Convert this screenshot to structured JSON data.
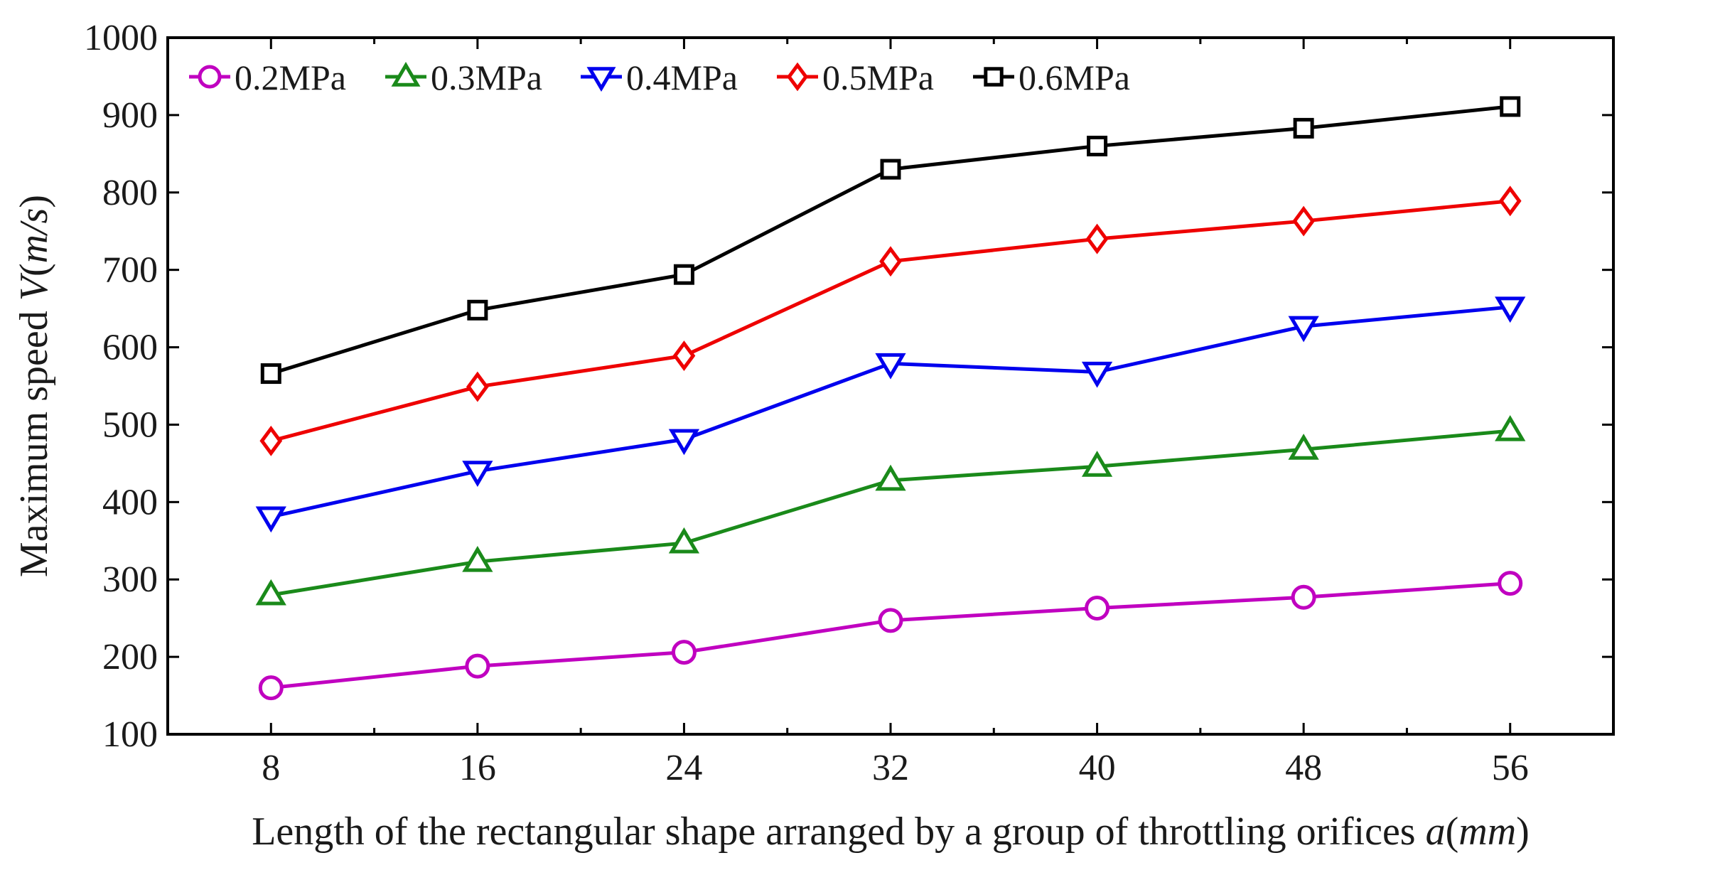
{
  "chart_data": {
    "type": "line",
    "title": "",
    "xlabel_parts": [
      {
        "text": "Length of the rectangular shape arranged by a group of throttling orifices ",
        "italic": false
      },
      {
        "text": "a",
        "italic": true
      },
      {
        "text": "(",
        "italic": false
      },
      {
        "text": "mm",
        "italic": true
      },
      {
        "text": ")",
        "italic": false
      }
    ],
    "ylabel_parts": [
      {
        "text": "Maximum speed ",
        "italic": false
      },
      {
        "text": "V",
        "italic": true
      },
      {
        "text": "(",
        "italic": false
      },
      {
        "text": "m/s",
        "italic": true
      },
      {
        "text": ")",
        "italic": false
      }
    ],
    "x": [
      8,
      16,
      24,
      32,
      40,
      48,
      56
    ],
    "xlim": [
      4,
      60
    ],
    "ylim": [
      100,
      1000
    ],
    "xticks": [
      8,
      16,
      24,
      32,
      40,
      48,
      56
    ],
    "yticks": [
      100,
      200,
      300,
      400,
      500,
      600,
      700,
      800,
      900,
      1000
    ],
    "legend_position": "top-left",
    "grid": false,
    "series": [
      {
        "name": "0.2MPa",
        "color": "#c000c0",
        "marker": "circle",
        "values": [
          160,
          188,
          206,
          247,
          263,
          277,
          295
        ]
      },
      {
        "name": "0.3MPa",
        "color": "#1a8a1a",
        "marker": "triangle-up",
        "values": [
          280,
          323,
          347,
          428,
          446,
          468,
          492
        ]
      },
      {
        "name": "0.4MPa",
        "color": "#0000ee",
        "marker": "triangle-down",
        "values": [
          381,
          440,
          481,
          579,
          568,
          627,
          652
        ]
      },
      {
        "name": "0.5MPa",
        "color": "#ee0000",
        "marker": "diamond",
        "values": [
          479,
          549,
          589,
          711,
          740,
          763,
          789
        ]
      },
      {
        "name": "0.6MPa",
        "color": "#000000",
        "marker": "square",
        "values": [
          566,
          648,
          694,
          830,
          860,
          883,
          911
        ]
      }
    ]
  }
}
